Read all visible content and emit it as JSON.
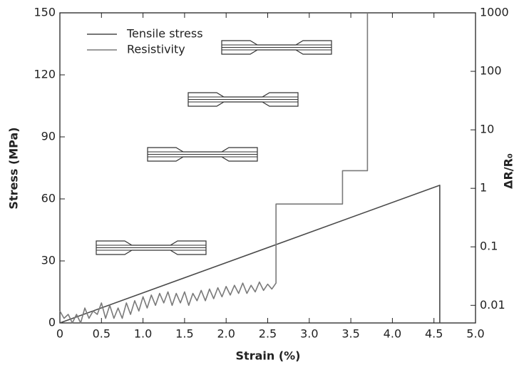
{
  "chart_data": {
    "type": "line",
    "x_label": "Strain (%)",
    "y_label": "Stress (MPa)",
    "y2_label": "ΔR/R₀",
    "xlim": [
      0,
      5
    ],
    "xticks": [
      0,
      0.5,
      {
        "value": 1,
        "label": "1.0"
      },
      1.5,
      {
        "value": 2,
        "label": "2.0"
      },
      2.5,
      {
        "value": 3,
        "label": "3.0"
      },
      3.5,
      {
        "value": 4,
        "label": "4.0"
      },
      4.5,
      {
        "value": 5,
        "label": "5.0"
      }
    ],
    "ylim": [
      0,
      150
    ],
    "yticks": [
      0,
      30,
      60,
      90,
      120,
      150
    ],
    "y2lim": [
      0.005,
      1000
    ],
    "y2ticks": [
      0.01,
      0.1,
      1,
      10,
      100,
      1000
    ],
    "y2scale": "log",
    "legend": "upper left",
    "series": [
      {
        "name": "Tensile stress",
        "color": "#4a4a4a",
        "axis": "y",
        "x": [
          0,
          4.57,
          4.57
        ],
        "values": [
          0,
          66.6,
          0
        ]
      },
      {
        "name": "Resistivity",
        "color": "#7a7a7a",
        "axis": "y2",
        "x": [
          0,
          0.05,
          0.1,
          0.15,
          0.2,
          0.25,
          0.3,
          0.35,
          0.4,
          0.45,
          0.5,
          0.55,
          0.6,
          0.65,
          0.7,
          0.75,
          0.8,
          0.85,
          0.9,
          0.95,
          1,
          1.05,
          1.1,
          1.15,
          1.2,
          1.25,
          1.3,
          1.35,
          1.4,
          1.45,
          1.5,
          1.55,
          1.6,
          1.65,
          1.7,
          1.75,
          1.8,
          1.85,
          1.9,
          1.95,
          2,
          2.05,
          2.1,
          2.15,
          2.2,
          2.25,
          2.3,
          2.35,
          2.4,
          2.45,
          2.5,
          2.55,
          2.6,
          2.6,
          3.4,
          3.4,
          3.7,
          3.7
        ],
        "values": [
          0.008,
          0.006,
          0.007,
          0.005,
          0.007,
          0.005,
          0.009,
          0.006,
          0.008,
          0.007,
          0.011,
          0.006,
          0.01,
          0.006,
          0.009,
          0.006,
          0.011,
          0.007,
          0.012,
          0.008,
          0.014,
          0.009,
          0.015,
          0.01,
          0.016,
          0.011,
          0.017,
          0.01,
          0.016,
          0.011,
          0.017,
          0.01,
          0.016,
          0.012,
          0.018,
          0.012,
          0.019,
          0.013,
          0.02,
          0.014,
          0.021,
          0.015,
          0.022,
          0.016,
          0.024,
          0.016,
          0.022,
          0.017,
          0.025,
          0.018,
          0.023,
          0.019,
          0.024,
          0.54,
          0.54,
          2,
          2,
          1000
        ]
      }
    ]
  }
}
